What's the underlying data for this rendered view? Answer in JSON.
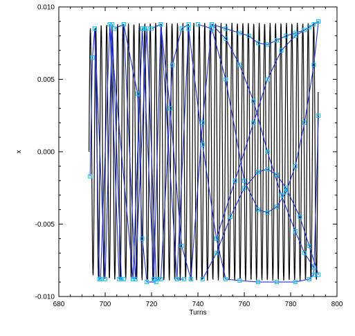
{
  "chart_data": {
    "type": "line",
    "title": "",
    "xlabel": "Turns",
    "ylabel": "x",
    "xlim": [
      680,
      800
    ],
    "ylim": [
      -0.01,
      0.01
    ],
    "x_ticks": [
      680,
      700,
      720,
      740,
      760,
      780,
      800
    ],
    "x_tick_labels": [
      "680",
      "700",
      "720",
      "740",
      "760",
      "780",
      "800"
    ],
    "y_ticks": [
      -0.01,
      -0.005,
      0.0,
      0.005,
      0.01
    ],
    "y_tick_labels": [
      "-0.010",
      "-0.005",
      "0.000",
      "0.005",
      "0.010"
    ],
    "grid": false,
    "legend": "none",
    "colors": {
      "oscillation": "#000000",
      "envelope": "#1f2fd0",
      "markers": "#17c4f0"
    },
    "series": [
      {
        "role": "oscillation",
        "x_start": 693,
        "x_end": 792,
        "period": 2.35,
        "amplitude": [
          [
            693,
            0.0085
          ],
          [
            700,
            0.0088
          ],
          [
            720,
            0.0089
          ],
          [
            740,
            0.0089
          ],
          [
            760,
            0.0089
          ],
          [
            770,
            0.0089
          ],
          [
            780,
            0.0089
          ],
          [
            792,
            0.0089
          ]
        ]
      },
      {
        "role": "envelope",
        "segments": [
          [
            [
              693.5,
              -0.0017
            ],
            [
              694.5,
              0.0065
            ],
            [
              695.5,
              0.0085
            ],
            [
              697.5,
              -0.0088
            ],
            [
              698,
              -0.0088
            ]
          ],
          [
            [
              698,
              -0.0088
            ],
            [
              702,
              0.0088
            ],
            [
              706,
              -0.0088
            ],
            [
              708,
              -0.0088
            ]
          ],
          [
            [
              695.5,
              0.0085
            ],
            [
              700,
              -0.0088
            ],
            [
              703,
              0.0088
            ],
            [
              707,
              -0.0088
            ]
          ],
          [
            [
              702,
              0.0088
            ],
            [
              712,
              -0.0088
            ],
            [
              716,
              0.0085
            ],
            [
              717,
              0.0085
            ]
          ],
          [
            [
              704,
              0.0085
            ],
            [
              708,
              0.0088
            ],
            [
              713,
              -0.0088
            ],
            [
              718,
              0.0085
            ],
            [
              722,
              -0.0088
            ],
            [
              724,
              -0.0088
            ]
          ],
          [
            [
              712,
              -0.0088
            ],
            [
              716,
              0.0085
            ],
            [
              721,
              -0.0088
            ],
            [
              724,
              0.0088
            ],
            [
              731,
              -0.0088
            ],
            [
              734,
              -0.0088
            ]
          ],
          [
            [
              708,
              0.0088
            ],
            [
              714,
              0.004
            ],
            [
              716,
              -0.006
            ],
            [
              718,
              -0.009
            ],
            [
              722,
              -0.009
            ]
          ],
          [
            [
              720,
              0.0085
            ],
            [
              724,
              0.0088
            ],
            [
              728,
              0.003
            ],
            [
              733,
              -0.0065
            ],
            [
              737,
              -0.0088
            ]
          ],
          [
            [
              724,
              -0.0088
            ],
            [
              729,
              0.006
            ],
            [
              733,
              0.0085
            ],
            [
              736,
              0.0088
            ]
          ],
          [
            [
              731,
              -0.0088
            ],
            [
              736,
              0.0085
            ],
            [
              742,
              0.0005
            ],
            [
              748,
              -0.006
            ],
            [
              752,
              -0.0088
            ],
            [
              758,
              -0.0089
            ],
            [
              766,
              -0.009
            ],
            [
              774,
              -0.009
            ],
            [
              782,
              -0.009
            ],
            [
              788,
              -0.0088
            ],
            [
              790,
              -0.0085
            ],
            [
              792,
              0.0025
            ]
          ],
          [
            [
              737,
              -0.0088
            ],
            [
              742,
              0.002
            ],
            [
              746,
              0.0088
            ],
            [
              752,
              0.0078
            ],
            [
              758,
              0.006
            ],
            [
              764,
              0.0035
            ],
            [
              770,
              0.0
            ],
            [
              776,
              -0.003
            ],
            [
              782,
              -0.0055
            ],
            [
              786,
              -0.007
            ],
            [
              790,
              -0.008
            ]
          ],
          [
            [
              740,
              0.0088
            ],
            [
              746,
              0.0085
            ],
            [
              752,
              0.005
            ],
            [
              760,
              -0.002
            ],
            [
              766,
              -0.004
            ],
            [
              770,
              -0.0042
            ],
            [
              774,
              -0.0038
            ],
            [
              778,
              -0.0028
            ],
            [
              782,
              -0.001
            ],
            [
              786,
              0.002
            ],
            [
              790,
              0.006
            ],
            [
              792,
              0.009
            ]
          ],
          [
            [
              746,
              0.0088
            ],
            [
              752,
              0.0085
            ],
            [
              758,
              0.0082
            ],
            [
              762,
              0.008
            ],
            [
              766,
              0.0075
            ],
            [
              770,
              0.0074
            ],
            [
              774,
              0.0077
            ],
            [
              778,
              0.008
            ],
            [
              782,
              0.0082
            ],
            [
              786,
              0.0084
            ],
            [
              790,
              0.0088
            ]
          ],
          [
            [
              742,
              -0.0088
            ],
            [
              748,
              -0.007
            ],
            [
              754,
              -0.0045
            ],
            [
              760,
              -0.0025
            ],
            [
              766,
              -0.0014
            ],
            [
              770,
              -0.0012
            ],
            [
              774,
              -0.0016
            ],
            [
              778,
              -0.0025
            ],
            [
              784,
              -0.0045
            ],
            [
              788,
              -0.0065
            ],
            [
              792,
              -0.0085
            ]
          ],
          [
            [
              748,
              -0.006
            ],
            [
              756,
              -0.002
            ],
            [
              764,
              0.002
            ],
            [
              770,
              0.005
            ],
            [
              776,
              0.007
            ],
            [
              782,
              0.008
            ],
            [
              788,
              0.0086
            ],
            [
              792,
              0.009
            ]
          ]
        ]
      }
    ]
  }
}
